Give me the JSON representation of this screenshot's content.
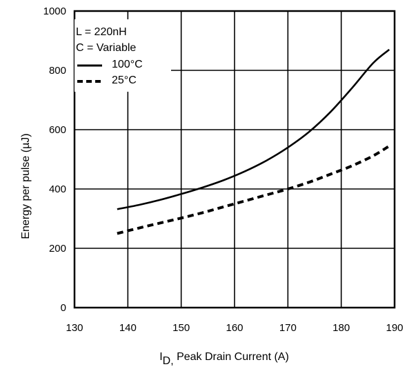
{
  "chart_data": {
    "type": "line",
    "xlabel_sub": "D,",
    "xlabel_main": "I",
    "xlabel_rest": " Peak Drain Current  (A)",
    "ylabel": "Energy per pulse (µJ)",
    "xlim": [
      130,
      190
    ],
    "ylim": [
      0,
      1000
    ],
    "xticks": [
      130,
      140,
      150,
      160,
      170,
      180,
      190
    ],
    "yticks": [
      0,
      200,
      400,
      600,
      800,
      1000
    ],
    "grid": true,
    "legend_position": "top-left",
    "legend_text": [
      "L = 220nH",
      "C = Variable"
    ],
    "series": [
      {
        "name": "100°C",
        "style": "solid",
        "color": "#000000",
        "x": [
          138,
          142,
          146,
          150,
          154,
          158,
          162,
          166,
          170,
          174,
          178,
          182,
          186,
          189
        ],
        "y": [
          332,
          346,
          363,
          383,
          405,
          430,
          460,
          496,
          540,
          593,
          660,
          740,
          825,
          870
        ]
      },
      {
        "name": "25°C",
        "style": "dashed",
        "color": "#000000",
        "x": [
          138,
          142,
          146,
          150,
          154,
          158,
          162,
          166,
          170,
          174,
          178,
          182,
          186,
          189
        ],
        "y": [
          250,
          268,
          285,
          302,
          320,
          340,
          360,
          380,
          400,
          423,
          450,
          478,
          512,
          545
        ]
      }
    ]
  }
}
